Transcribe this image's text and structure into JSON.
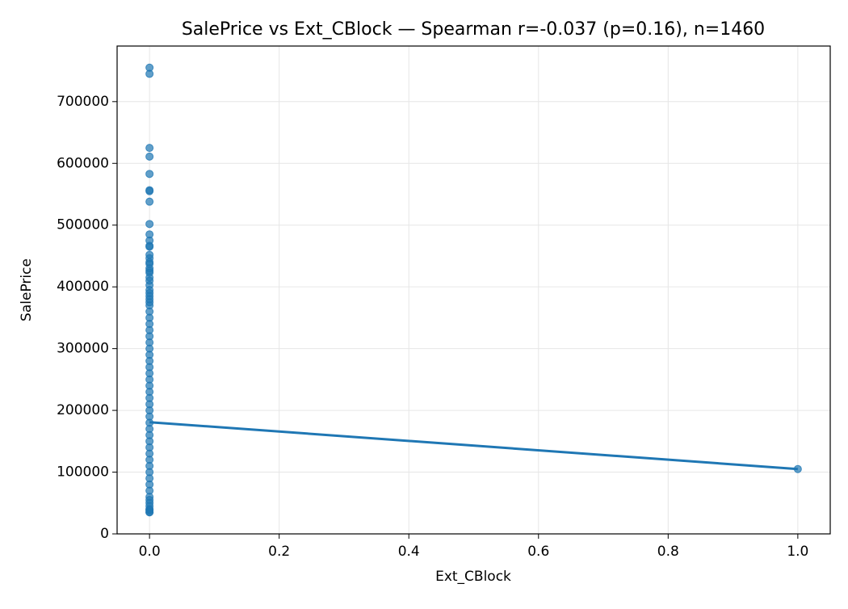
{
  "chart_data": {
    "type": "scatter",
    "title": "SalePrice vs Ext_CBlock — Spearman r=-0.037 (p=0.16), n=1460",
    "xlabel": "Ext_CBlock",
    "ylabel": "SalePrice",
    "xlim": [
      -0.05,
      1.05
    ],
    "ylim": [
      0,
      790000
    ],
    "xticks": [
      {
        "value": 0,
        "label": "0.0"
      },
      {
        "value": 0.2,
        "label": "0.2"
      },
      {
        "value": 0.4,
        "label": "0.4"
      },
      {
        "value": 0.6,
        "label": "0.6"
      },
      {
        "value": 0.8,
        "label": "0.8"
      },
      {
        "value": 1,
        "label": "1.0"
      }
    ],
    "yticks": [
      0,
      100000,
      200000,
      300000,
      400000,
      500000,
      600000,
      700000
    ],
    "grid": true,
    "points": {
      "color": "#1f77b4",
      "x": [
        0,
        0,
        0,
        0,
        0,
        0,
        0,
        0,
        0,
        0,
        0,
        0,
        0,
        0,
        0,
        0,
        0,
        0,
        0,
        0,
        0,
        0,
        0,
        0,
        0,
        0,
        0,
        0,
        0,
        0,
        0,
        0,
        0,
        0,
        0,
        0,
        0,
        0,
        0,
        0,
        0,
        0,
        0,
        0,
        0,
        0,
        0,
        0,
        0,
        0,
        0,
        0,
        0,
        0,
        0,
        0,
        0,
        0,
        0,
        0,
        0,
        0,
        0,
        0,
        0,
        0,
        0,
        0,
        1
      ],
      "y": [
        755000,
        745000,
        625000,
        611000,
        582933,
        556581,
        555000,
        538000,
        501837,
        485000,
        475000,
        466500,
        465000,
        451950,
        446261,
        440000,
        437154,
        430000,
        426000,
        423000,
        415298,
        410000,
        402861,
        395000,
        390000,
        385000,
        380000,
        375000,
        370000,
        360000,
        350000,
        340000,
        330000,
        320000,
        310000,
        300000,
        290000,
        280000,
        270000,
        260000,
        250000,
        240000,
        230000,
        220000,
        210000,
        200000,
        190000,
        180000,
        170000,
        160000,
        150000,
        140000,
        130000,
        120000,
        110000,
        100000,
        90000,
        80000,
        70000,
        60000,
        55000,
        50000,
        45000,
        40000,
        39300,
        37900,
        35311,
        34900,
        105000
      ]
    },
    "fit": {
      "color": "#1f77b4",
      "x": [
        0,
        1
      ],
      "y": [
        180900,
        105000
      ]
    }
  }
}
